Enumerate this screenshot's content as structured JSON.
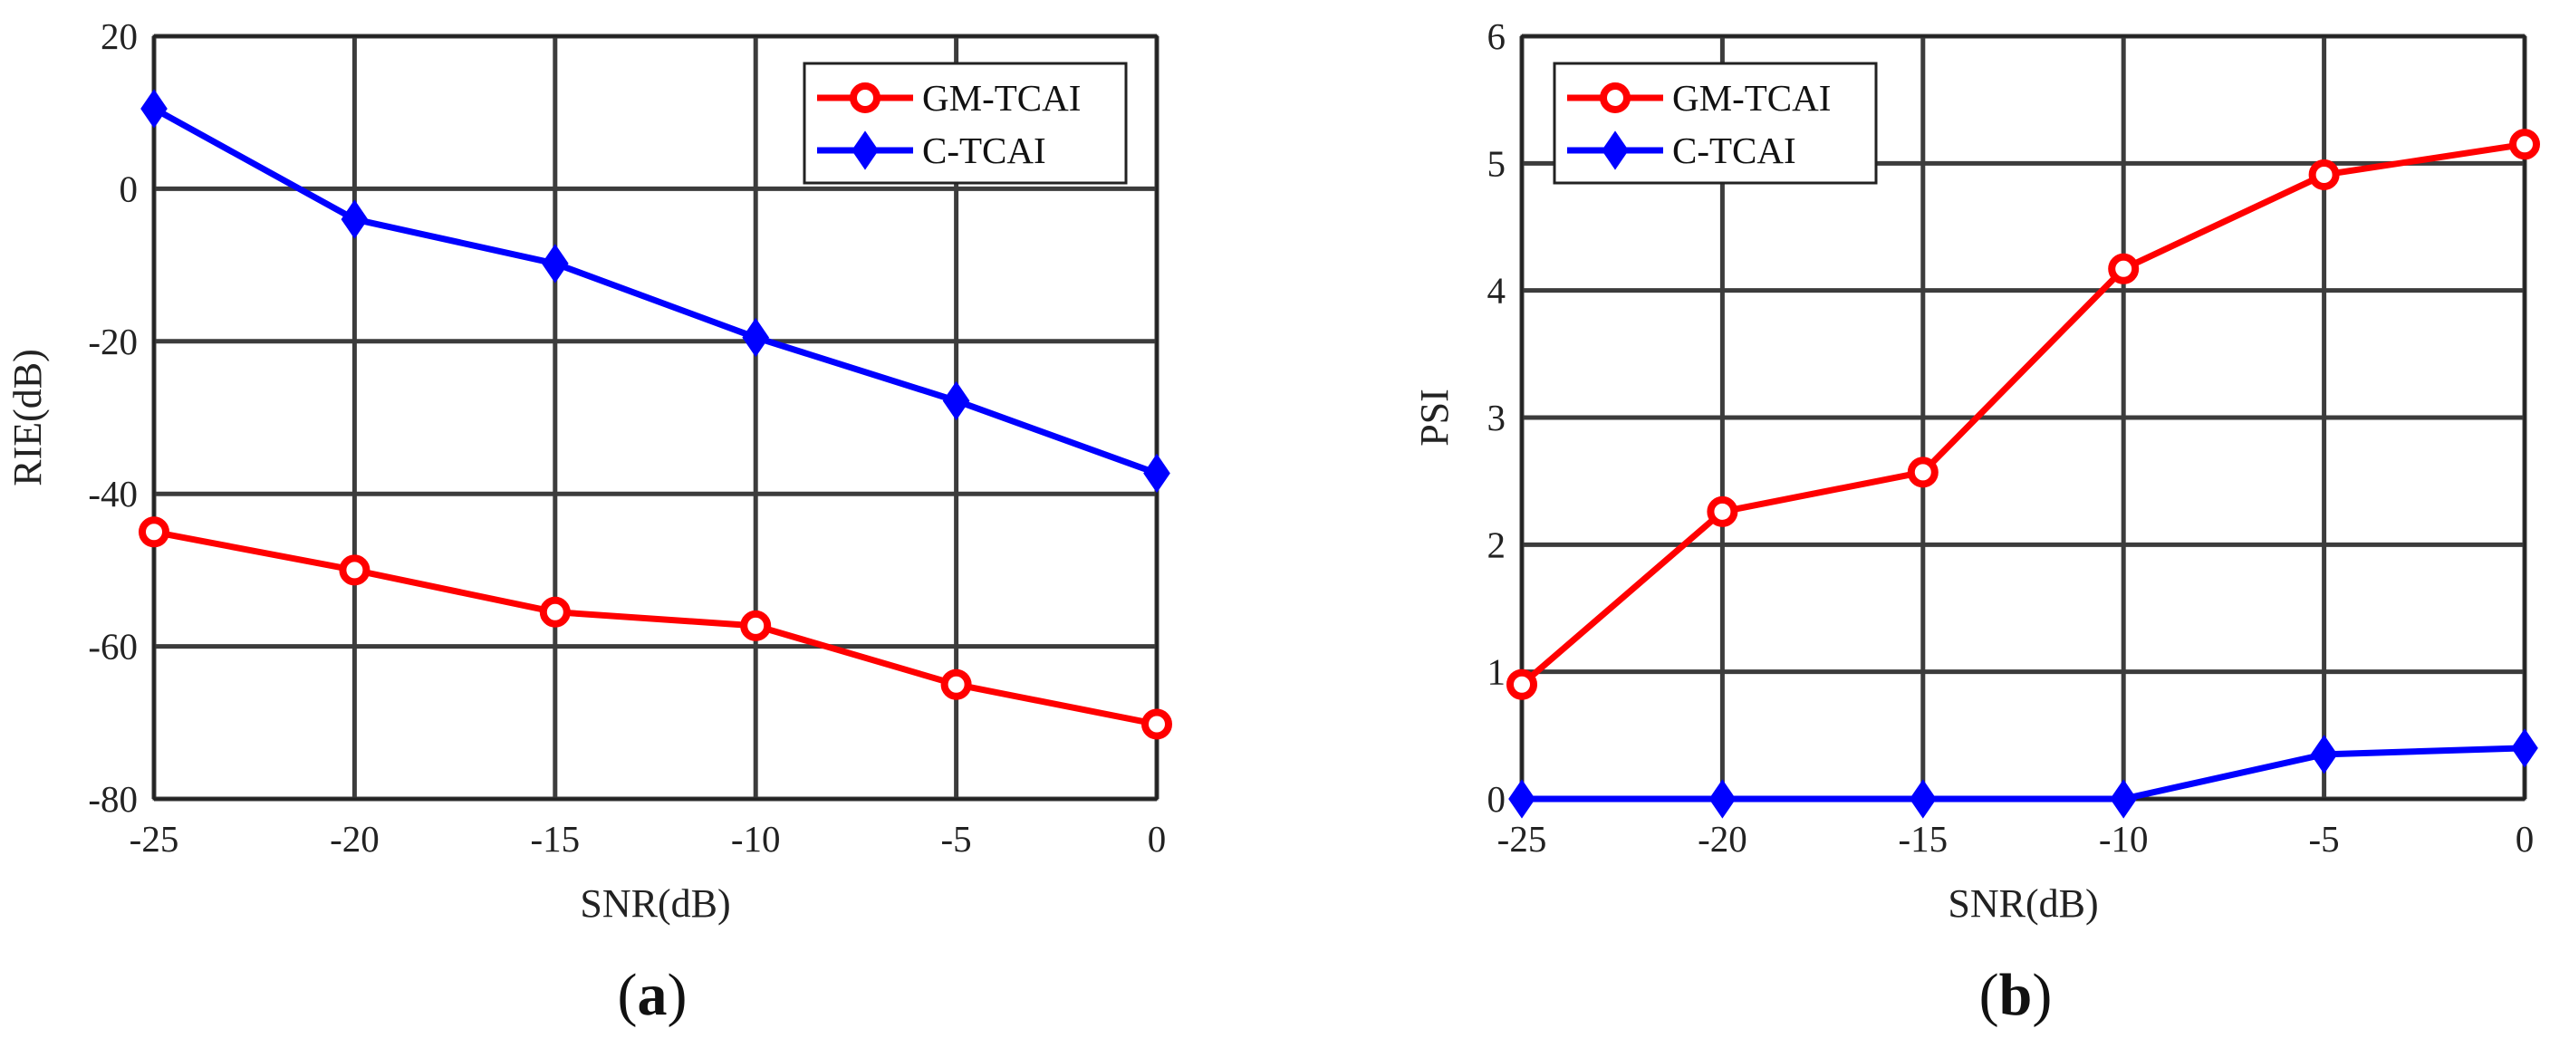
{
  "chart_data": [
    {
      "type": "line",
      "panel_label": "a",
      "title": "",
      "xlabel": "SNR(dB)",
      "ylabel": "RIE(dB)",
      "xlim": [
        -25,
        0
      ],
      "ylim": [
        -80,
        20
      ],
      "xticks": [
        -25,
        -20,
        -15,
        -10,
        -5,
        0
      ],
      "yticks": [
        20,
        0,
        -20,
        -40,
        -60,
        -80
      ],
      "grid": true,
      "legend_position": "top-right",
      "x": [
        -25,
        -20,
        -15,
        -10,
        -5,
        0
      ],
      "series": [
        {
          "name": "GM-TCAI",
          "color": "#ff0000",
          "marker": "circle",
          "values": [
            -45,
            -50,
            -55.5,
            -57.3,
            -65,
            -70.2
          ]
        },
        {
          "name": "C-TCAI",
          "color": "#0000ff",
          "marker": "diamond",
          "values": [
            10.5,
            -4,
            -9.8,
            -19.5,
            -27.8,
            -37.3
          ]
        }
      ]
    },
    {
      "type": "line",
      "panel_label": "b",
      "title": "",
      "xlabel": "SNR(dB)",
      "ylabel": "PSI",
      "xlim": [
        -25,
        0
      ],
      "ylim": [
        0,
        6
      ],
      "xticks": [
        -25,
        -20,
        -15,
        -10,
        -5,
        0
      ],
      "yticks": [
        6,
        5,
        4,
        3,
        2,
        1,
        0
      ],
      "grid": true,
      "legend_position": "top-left",
      "x": [
        -25,
        -20,
        -15,
        -10,
        -5,
        0
      ],
      "series": [
        {
          "name": "GM-TCAI",
          "color": "#ff0000",
          "marker": "circle",
          "values": [
            0.9,
            2.26,
            2.57,
            4.17,
            4.91,
            5.15
          ]
        },
        {
          "name": "C-TCAI",
          "color": "#0000ff",
          "marker": "diamond",
          "values": [
            0,
            0,
            0,
            0,
            0.35,
            0.4
          ]
        }
      ]
    }
  ]
}
